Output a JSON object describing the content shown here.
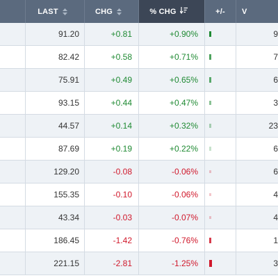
{
  "header": {
    "last_label": "LAST",
    "chg_label": "CHG",
    "pct_chg_label": "% CHG",
    "bar_label": "+/-",
    "vol_label": "V"
  },
  "colors": {
    "positive": "#1f8a33",
    "negative": "#d0182b",
    "header_bg": "#5b6a7e",
    "header_active_bg": "#3c4656"
  },
  "rows": [
    {
      "last": "91.20",
      "chg": "+0.81",
      "pct_chg": "+0.90%",
      "vol": "9",
      "direction": "up",
      "magnitude": 0.9
    },
    {
      "last": "82.42",
      "chg": "+0.58",
      "pct_chg": "+0.71%",
      "vol": "7",
      "direction": "up",
      "magnitude": 0.71
    },
    {
      "last": "75.91",
      "chg": "+0.49",
      "pct_chg": "+0.65%",
      "vol": "6",
      "direction": "up",
      "magnitude": 0.65
    },
    {
      "last": "93.15",
      "chg": "+0.44",
      "pct_chg": "+0.47%",
      "vol": "3",
      "direction": "up",
      "magnitude": 0.47
    },
    {
      "last": "44.57",
      "chg": "+0.14",
      "pct_chg": "+0.32%",
      "vol": "23",
      "direction": "up",
      "magnitude": 0.32
    },
    {
      "last": "87.69",
      "chg": "+0.19",
      "pct_chg": "+0.22%",
      "vol": "6",
      "direction": "up",
      "magnitude": 0.22
    },
    {
      "last": "129.20",
      "chg": "-0.08",
      "pct_chg": "-0.06%",
      "vol": "6",
      "direction": "down",
      "magnitude": 0.06
    },
    {
      "last": "155.35",
      "chg": "-0.10",
      "pct_chg": "-0.06%",
      "vol": "4",
      "direction": "down",
      "magnitude": 0.06
    },
    {
      "last": "43.34",
      "chg": "-0.03",
      "pct_chg": "-0.07%",
      "vol": "4",
      "direction": "down",
      "magnitude": 0.07
    },
    {
      "last": "186.45",
      "chg": "-1.42",
      "pct_chg": "-0.76%",
      "vol": "1",
      "direction": "down",
      "magnitude": 0.76
    },
    {
      "last": "221.15",
      "chg": "-2.81",
      "pct_chg": "-1.25%",
      "vol": "3",
      "direction": "down",
      "magnitude": 1.25
    }
  ]
}
